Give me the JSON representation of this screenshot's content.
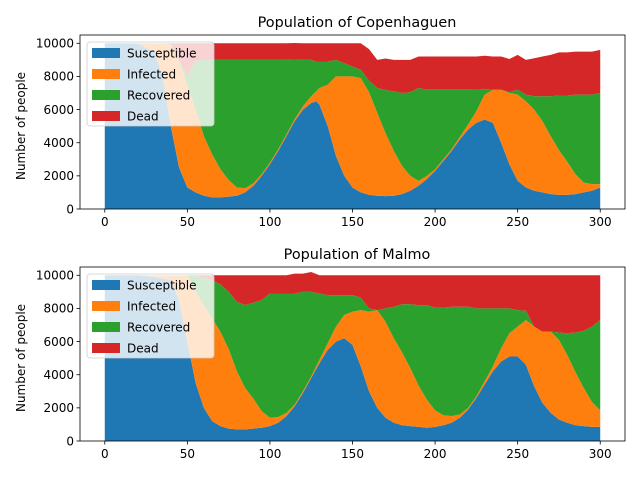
{
  "chart_data": [
    {
      "type": "area",
      "stacked": true,
      "title": "Population of Copenhaguen",
      "xlabel": "",
      "ylabel": "Number of people",
      "xlim": [
        -15,
        315
      ],
      "ylim": [
        0,
        10500
      ],
      "xticks": [
        0,
        50,
        100,
        150,
        200,
        250,
        300
      ],
      "yticks": [
        0,
        2000,
        4000,
        6000,
        8000,
        10000
      ],
      "legend_position": "upper-left",
      "x": [
        0,
        10,
        20,
        30,
        35,
        40,
        45,
        50,
        55,
        60,
        65,
        70,
        75,
        80,
        85,
        90,
        95,
        100,
        105,
        110,
        115,
        120,
        125,
        128,
        130,
        135,
        140,
        145,
        150,
        155,
        160,
        165,
        170,
        175,
        180,
        185,
        190,
        195,
        200,
        205,
        210,
        215,
        220,
        225,
        230,
        235,
        240,
        245,
        250,
        255,
        260,
        265,
        270,
        275,
        280,
        285,
        290,
        295,
        300
      ],
      "series": [
        {
          "name": "Susceptible",
          "color": "#1f77b4",
          "values": [
            10000,
            10000,
            9980,
            9500,
            8000,
            5000,
            2500,
            1300,
            1000,
            800,
            700,
            700,
            750,
            800,
            1000,
            1400,
            2000,
            2700,
            3500,
            4400,
            5300,
            6000,
            6400,
            6500,
            6300,
            5000,
            3200,
            2000,
            1300,
            1000,
            850,
            800,
            780,
            800,
            900,
            1100,
            1400,
            1800,
            2300,
            2900,
            3500,
            4200,
            4800,
            5200,
            5400,
            5200,
            4000,
            2700,
            1700,
            1300,
            1100,
            1000,
            900,
            850,
            850,
            900,
            1000,
            1100,
            1300
          ]
        },
        {
          "name": "Infected",
          "color": "#ff7f0e",
          "values": [
            0,
            0,
            20,
            500,
            2000,
            4900,
            6400,
            6200,
            5000,
            3600,
            2600,
            1700,
            1000,
            500,
            250,
            150,
            100,
            100,
            100,
            100,
            120,
            200,
            400,
            600,
            1000,
            2500,
            4800,
            6000,
            6700,
            6900,
            6200,
            5000,
            3800,
            2700,
            1700,
            900,
            300,
            200,
            100,
            100,
            100,
            150,
            300,
            700,
            1500,
            2000,
            3200,
            4300,
            5200,
            5200,
            4900,
            4300,
            3500,
            2700,
            2000,
            1200,
            600,
            400,
            200
          ]
        },
        {
          "name": "Recovered",
          "color": "#2ca02c",
          "values": [
            0,
            0,
            0,
            0,
            0,
            100,
            100,
            500,
            2950,
            4600,
            5700,
            6600,
            7250,
            7700,
            7750,
            7450,
            6900,
            6200,
            5400,
            4500,
            3600,
            2800,
            2200,
            1800,
            1600,
            1400,
            1000,
            800,
            600,
            500,
            700,
            1500,
            2600,
            3600,
            4400,
            5050,
            5600,
            5200,
            4800,
            4200,
            3600,
            2850,
            2100,
            1300,
            350,
            0,
            0,
            50,
            300,
            400,
            800,
            1500,
            2400,
            3300,
            4000,
            4800,
            5300,
            5400,
            5500
          ]
        },
        {
          "name": "Dead",
          "color": "#d62728",
          "values": [
            0,
            0,
            0,
            0,
            0,
            0,
            1000,
            2000,
            1050,
            1000,
            1000,
            1000,
            1000,
            1000,
            1000,
            1000,
            1000,
            1000,
            1000,
            1000,
            1000,
            1000,
            1000,
            1100,
            1100,
            1100,
            1000,
            1200,
            1400,
            1600,
            1900,
            1700,
            1900,
            1900,
            2000,
            1950,
            1900,
            2000,
            2000,
            2000,
            2000,
            2000,
            2000,
            2000,
            2000,
            2000,
            2000,
            2000,
            2100,
            2100,
            2300,
            2400,
            2500,
            2600,
            2600,
            2600,
            2600,
            2600,
            2600
          ]
        }
      ]
    },
    {
      "type": "area",
      "stacked": true,
      "title": "Population of Malmo",
      "xlabel": "",
      "ylabel": "Number of people",
      "xlim": [
        -15,
        315
      ],
      "ylim": [
        0,
        10500
      ],
      "xticks": [
        0,
        50,
        100,
        150,
        200,
        250,
        300
      ],
      "yticks": [
        0,
        2000,
        4000,
        6000,
        8000,
        10000
      ],
      "legend_position": "upper-left",
      "x": [
        0,
        10,
        20,
        30,
        40,
        45,
        50,
        55,
        60,
        65,
        70,
        75,
        80,
        85,
        90,
        95,
        100,
        105,
        110,
        115,
        120,
        125,
        130,
        135,
        140,
        145,
        150,
        155,
        160,
        165,
        170,
        175,
        180,
        185,
        190,
        195,
        200,
        205,
        210,
        215,
        220,
        225,
        230,
        235,
        240,
        245,
        250,
        255,
        260,
        265,
        270,
        275,
        280,
        285,
        290,
        295,
        300
      ],
      "series": [
        {
          "name": "Susceptible",
          "color": "#1f77b4",
          "values": [
            10000,
            10000,
            10000,
            9900,
            9700,
            8500,
            6000,
            3500,
            2000,
            1200,
            900,
            750,
            700,
            700,
            750,
            800,
            900,
            1100,
            1500,
            2100,
            2900,
            3800,
            4700,
            5500,
            6000,
            6200,
            5800,
            4500,
            3000,
            2000,
            1400,
            1100,
            950,
            900,
            850,
            800,
            850,
            950,
            1100,
            1400,
            1900,
            2600,
            3400,
            4200,
            4800,
            5100,
            5100,
            4600,
            3300,
            2300,
            1700,
            1300,
            1100,
            950,
            900,
            850,
            850
          ]
        },
        {
          "name": "Infected",
          "color": "#ff7f0e",
          "values": [
            0,
            0,
            0,
            100,
            300,
            1500,
            4000,
            5500,
            6200,
            6200,
            5700,
            4800,
            3500,
            2500,
            1800,
            1000,
            500,
            350,
            200,
            100,
            100,
            100,
            200,
            400,
            900,
            1400,
            2000,
            3400,
            4800,
            5900,
            5800,
            5100,
            4400,
            3500,
            2500,
            1700,
            1000,
            600,
            400,
            200,
            100,
            100,
            200,
            300,
            800,
            1400,
            1800,
            2700,
            3600,
            4300,
            4900,
            4800,
            4100,
            3200,
            2300,
            1500,
            1000
          ]
        },
        {
          "name": "Recovered",
          "color": "#2ca02c",
          "values": [
            0,
            0,
            0,
            0,
            0,
            0,
            0,
            950,
            1650,
            2300,
            2850,
            3450,
            4200,
            5000,
            5800,
            6700,
            7500,
            7450,
            7200,
            6700,
            6000,
            5100,
            4000,
            2900,
            1900,
            1200,
            1000,
            750,
            200,
            0,
            800,
            1900,
            2900,
            3850,
            4850,
            5700,
            6200,
            6500,
            6600,
            6500,
            6100,
            5300,
            4400,
            3500,
            2400,
            1500,
            1000,
            550,
            0,
            0,
            0,
            450,
            1300,
            2400,
            3450,
            4550,
            5450
          ]
        },
        {
          "name": "Dead",
          "color": "#d62728",
          "values": [
            0,
            0,
            0,
            0,
            0,
            0,
            0,
            50,
            150,
            300,
            550,
            1000,
            1600,
            1800,
            1650,
            1500,
            1100,
            1100,
            1100,
            1200,
            1100,
            1200,
            1100,
            1200,
            1200,
            1200,
            1200,
            1350,
            2000,
            2100,
            2000,
            1900,
            1750,
            1750,
            1800,
            1800,
            1950,
            1950,
            1900,
            1900,
            1900,
            2000,
            2000,
            2000,
            2000,
            2000,
            2100,
            2150,
            3100,
            3400,
            3400,
            3450,
            3500,
            3450,
            3350,
            3100,
            2700
          ]
        }
      ]
    }
  ]
}
